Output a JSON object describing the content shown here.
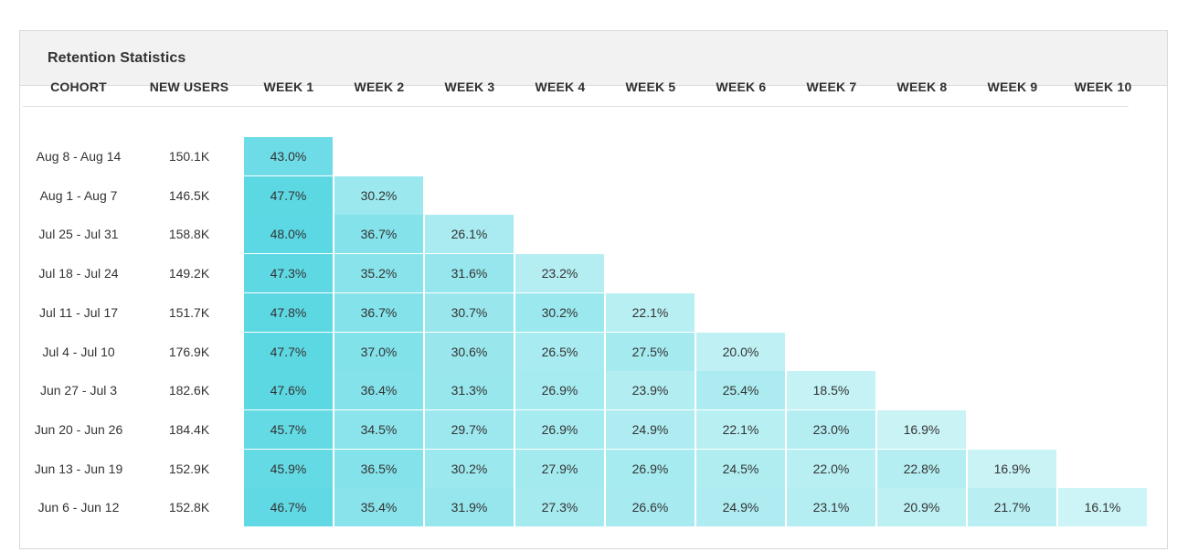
{
  "panel": {
    "title": "Retention Statistics"
  },
  "colors": {
    "cell_max": "#5bd8e3",
    "cell_min": "#cdf4f6"
  },
  "chart_data": {
    "type": "heatmap",
    "columns": [
      "COHORT",
      "NEW USERS",
      "WEEK 1",
      "WEEK 2",
      "WEEK 3",
      "WEEK 4",
      "WEEK 5",
      "WEEK 6",
      "WEEK 7",
      "WEEK 8",
      "WEEK 9",
      "WEEK 10"
    ],
    "rows": [
      {
        "cohort": "Aug 8 - Aug 14",
        "new_users": "150.1K",
        "values": [
          "43.0%"
        ]
      },
      {
        "cohort": "Aug 1 - Aug 7",
        "new_users": "146.5K",
        "values": [
          "47.7%",
          "30.2%"
        ]
      },
      {
        "cohort": "Jul 25 - Jul 31",
        "new_users": "158.8K",
        "values": [
          "48.0%",
          "36.7%",
          "26.1%"
        ]
      },
      {
        "cohort": "Jul 18 - Jul 24",
        "new_users": "149.2K",
        "values": [
          "47.3%",
          "35.2%",
          "31.6%",
          "23.2%"
        ]
      },
      {
        "cohort": "Jul 11 - Jul 17",
        "new_users": "151.7K",
        "values": [
          "47.8%",
          "36.7%",
          "30.7%",
          "30.2%",
          "22.1%"
        ]
      },
      {
        "cohort": "Jul 4 - Jul 10",
        "new_users": "176.9K",
        "values": [
          "47.7%",
          "37.0%",
          "30.6%",
          "26.5%",
          "27.5%",
          "20.0%"
        ]
      },
      {
        "cohort": "Jun 27 - Jul 3",
        "new_users": "182.6K",
        "values": [
          "47.6%",
          "36.4%",
          "31.3%",
          "26.9%",
          "23.9%",
          "25.4%",
          "18.5%"
        ]
      },
      {
        "cohort": "Jun 20 - Jun 26",
        "new_users": "184.4K",
        "values": [
          "45.7%",
          "34.5%",
          "29.7%",
          "26.9%",
          "24.9%",
          "22.1%",
          "23.0%",
          "16.9%"
        ]
      },
      {
        "cohort": "Jun 13 - Jun 19",
        "new_users": "152.9K",
        "values": [
          "45.9%",
          "36.5%",
          "30.2%",
          "27.9%",
          "26.9%",
          "24.5%",
          "22.0%",
          "22.8%",
          "16.9%"
        ]
      },
      {
        "cohort": "Jun 6 - Jun 12",
        "new_users": "152.8K",
        "values": [
          "46.7%",
          "35.4%",
          "31.9%",
          "27.3%",
          "26.6%",
          "24.9%",
          "23.1%",
          "20.9%",
          "21.7%",
          "16.1%"
        ]
      }
    ]
  }
}
